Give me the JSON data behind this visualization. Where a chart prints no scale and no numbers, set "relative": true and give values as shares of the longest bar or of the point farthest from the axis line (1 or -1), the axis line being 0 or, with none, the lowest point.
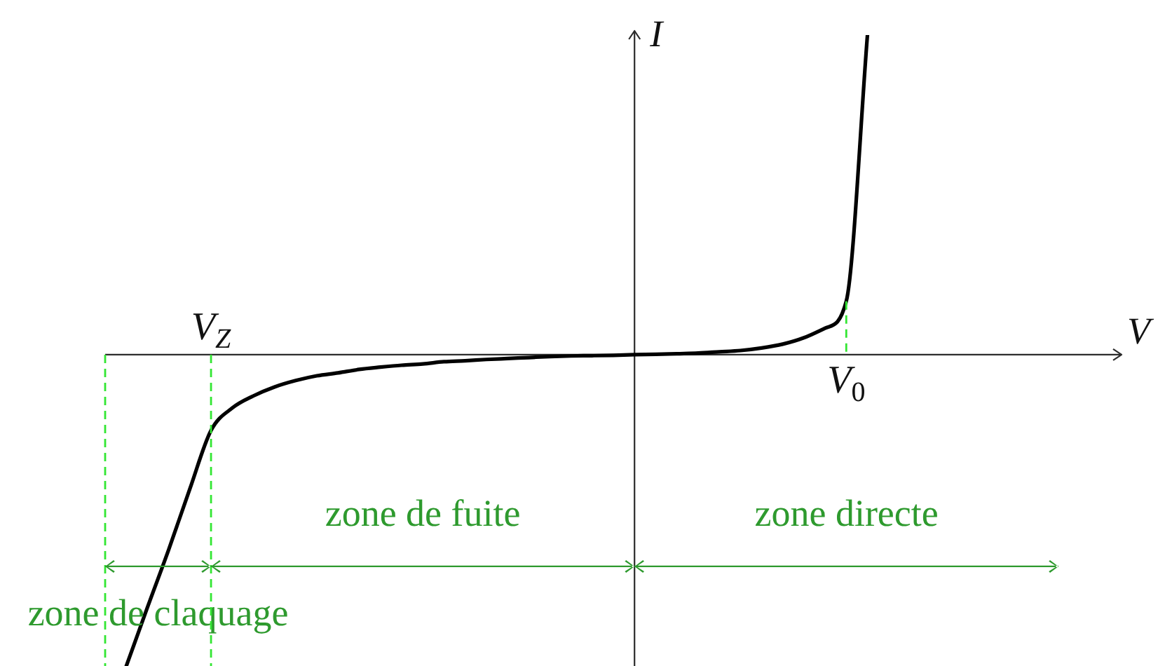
{
  "chart_data": {
    "type": "line",
    "xlabel": "V",
    "ylabel": "I",
    "relative": true,
    "marker": "none",
    "tick_labels": "x",
    "categories": [
      null,
      null,
      null,
      null,
      null,
      "V$_{Z}$",
      null,
      null,
      null,
      null,
      null,
      null,
      null,
      null,
      null,
      null,
      null,
      null,
      null,
      null,
      null,
      null,
      null,
      null,
      null,
      null,
      null,
      null,
      null,
      null,
      null,
      null,
      null,
      null,
      null,
      "V$_{0}$",
      null,
      null,
      null,
      null,
      null,
      null,
      null,
      null,
      null,
      null,
      null,
      null,
      null
    ],
    "series": [
      {
        "color": "#000000",
        "values": [
          null,
          -0.974,
          -0.79,
          -0.61,
          -0.42,
          -0.237,
          -0.167,
          -0.129,
          -0.101,
          -0.081,
          -0.066,
          -0.057,
          -0.046,
          -0.039,
          -0.033,
          -0.029,
          -0.022,
          -0.019,
          -0.015,
          -0.012,
          -0.009,
          -0.006,
          -0.004,
          -0.003,
          -0.002,
          0,
          0.001,
          0.003,
          0.005,
          0.009,
          0.013,
          0.021,
          0.033,
          0.053,
          0.083,
          0.167,
          1,
          null,
          null,
          null,
          null,
          null,
          null,
          null,
          null,
          null,
          null,
          null,
          null
        ]
      }
    ],
    "annotations": [
      "zone de claquage",
      "zone de fuite",
      "zone directe"
    ]
  }
}
